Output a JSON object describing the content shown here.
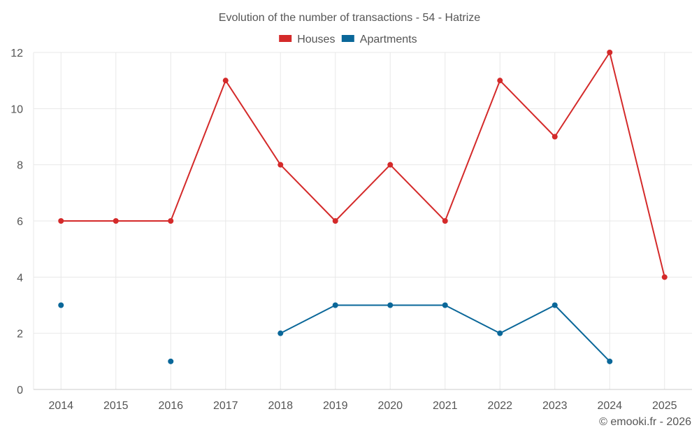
{
  "chart_data": {
    "type": "line",
    "title": "Evolution of the number of transactions - 54 - Hatrize",
    "categories": [
      "2014",
      "2015",
      "2016",
      "2017",
      "2018",
      "2019",
      "2020",
      "2021",
      "2022",
      "2023",
      "2024",
      "2025"
    ],
    "ylim": [
      0,
      12
    ],
    "yticks": [
      0,
      2,
      4,
      6,
      8,
      10,
      12
    ],
    "grid": true,
    "legend": "top-center",
    "xlabel": "",
    "ylabel": "",
    "series": [
      {
        "name": "Houses",
        "color": "#d42a2a",
        "values": [
          6,
          6,
          6,
          11,
          8,
          6,
          8,
          6,
          11,
          9,
          12,
          4
        ]
      },
      {
        "name": "Apartments",
        "color": "#0a6799",
        "values": [
          3,
          null,
          1,
          null,
          2,
          3,
          3,
          3,
          2,
          3,
          1,
          null
        ]
      }
    ]
  },
  "footer": {
    "copyright": "© emooki.fr - 2026"
  }
}
